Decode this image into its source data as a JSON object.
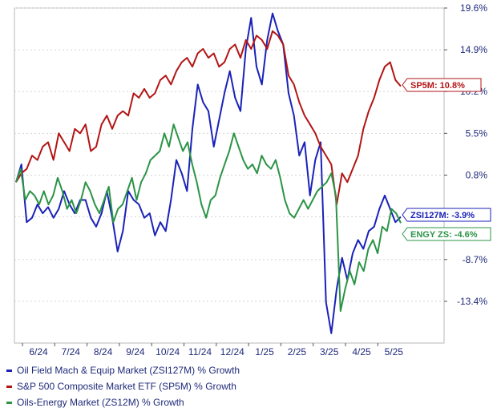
{
  "chart_data": {
    "type": "line",
    "x_ticks": [
      "6/24",
      "7/24",
      "8/24",
      "9/24",
      "10/24",
      "11/24",
      "12/24",
      "1/25",
      "2/25",
      "3/25",
      "4/25",
      "5/25"
    ],
    "y_ticks": [
      {
        "value": 19.6,
        "label": "19.6%"
      },
      {
        "value": 14.9,
        "label": "14.9%"
      },
      {
        "value": 10.2,
        "label": "10.2%"
      },
      {
        "value": 5.5,
        "label": "5.5%"
      },
      {
        "value": 0.8,
        "label": "0.8%"
      },
      {
        "value": -3.9,
        "label": "-3.9%"
      },
      {
        "value": -8.7,
        "label": "-8.7%"
      },
      {
        "value": -13.4,
        "label": "-13.4%"
      }
    ],
    "ylim": [
      -18.1,
      19.6
    ],
    "grid": true,
    "series": [
      {
        "name": "Oil Field Mach & Equip Market (ZSI127M) % Growth",
        "color": "#1a22b8",
        "end_label": "ZSI127M: -3.9%",
        "values": [
          0.0,
          2.0,
          -4.5,
          -4.0,
          -2.5,
          -3.5,
          -2.8,
          -4.0,
          -3.0,
          -1.0,
          -2.5,
          -3.5,
          -2.0,
          -2.0,
          -4.0,
          -5.0,
          -3.5,
          -1.0,
          -4.0,
          -7.8,
          -5.5,
          -1.0,
          -2.0,
          -2.5,
          -4.0,
          -3.5,
          -6.0,
          -4.5,
          -5.5,
          -2.0,
          2.5,
          1.0,
          -1.0,
          6.0,
          11.0,
          9.0,
          8.0,
          4.0,
          7.0,
          10.0,
          12.5,
          9.5,
          8.0,
          15.0,
          18.5,
          13.0,
          11.0,
          16.0,
          19.0,
          17.0,
          15.5,
          10.0,
          7.5,
          3.0,
          4.5,
          -1.5,
          2.5,
          4.5,
          -13.5,
          -17.0,
          -12.0,
          -8.5,
          -11.0,
          -8.0,
          -6.5,
          -7.5,
          -5.5,
          -5.0,
          -3.0,
          -1.5,
          -3.0,
          -4.5,
          -3.9
        ]
      },
      {
        "name": "S&P 500 Composite Market ETF (SP5M) % Growth",
        "color": "#b31515",
        "end_label": "SP5M: 10.8%",
        "values": [
          0.0,
          1.0,
          1.5,
          3.0,
          2.5,
          4.0,
          4.5,
          2.5,
          5.5,
          4.5,
          3.5,
          6.0,
          5.5,
          6.5,
          3.5,
          4.0,
          6.5,
          7.5,
          6.0,
          7.5,
          8.0,
          7.5,
          10.0,
          9.5,
          10.5,
          9.5,
          10.0,
          11.5,
          12.0,
          11.0,
          12.5,
          13.5,
          14.0,
          13.0,
          14.5,
          15.0,
          14.0,
          14.5,
          13.0,
          13.5,
          15.0,
          15.5,
          14.0,
          16.0,
          15.0,
          16.5,
          16.0,
          15.0,
          17.0,
          16.5,
          15.5,
          12.0,
          11.0,
          9.0,
          7.5,
          6.5,
          5.5,
          4.0,
          3.0,
          2.0,
          -2.5,
          1.0,
          0.0,
          1.5,
          3.0,
          6.0,
          8.0,
          9.5,
          11.5,
          13.0,
          13.5,
          11.5,
          10.8
        ]
      },
      {
        "name": "Oils-Energy Market (ZS12M) % Growth",
        "color": "#2b9446",
        "end_label": "ENGY ZS: -4.6%",
        "values": [
          0.0,
          1.5,
          -2.0,
          -1.0,
          -1.5,
          -2.5,
          -1.0,
          -2.5,
          -1.5,
          0.5,
          -1.0,
          -3.0,
          -2.0,
          -3.5,
          -2.0,
          0.0,
          -1.0,
          -2.5,
          -3.5,
          -2.0,
          -0.5,
          -4.5,
          -3.0,
          -2.5,
          -1.0,
          0.5,
          -2.0,
          0.0,
          1.0,
          2.5,
          3.0,
          3.5,
          5.5,
          4.0,
          6.5,
          5.0,
          3.5,
          4.5,
          2.0,
          0.0,
          -2.5,
          -4.0,
          -2.0,
          -1.5,
          0.5,
          2.0,
          3.5,
          5.5,
          4.0,
          2.5,
          1.5,
          2.0,
          1.0,
          3.0,
          2.0,
          1.5,
          2.5,
          0.5,
          -2.0,
          -3.5,
          -4.0,
          -3.0,
          -2.0,
          -3.0,
          -2.0,
          -1.0,
          -0.5,
          0.0,
          1.0,
          -1.5,
          -14.5,
          -12.0,
          -10.0,
          -11.5,
          -9.0,
          -10.0,
          -7.5,
          -6.5,
          -8.0,
          -5.0,
          -5.5,
          -3.0,
          -3.5,
          -4.6
        ]
      }
    ]
  }
}
